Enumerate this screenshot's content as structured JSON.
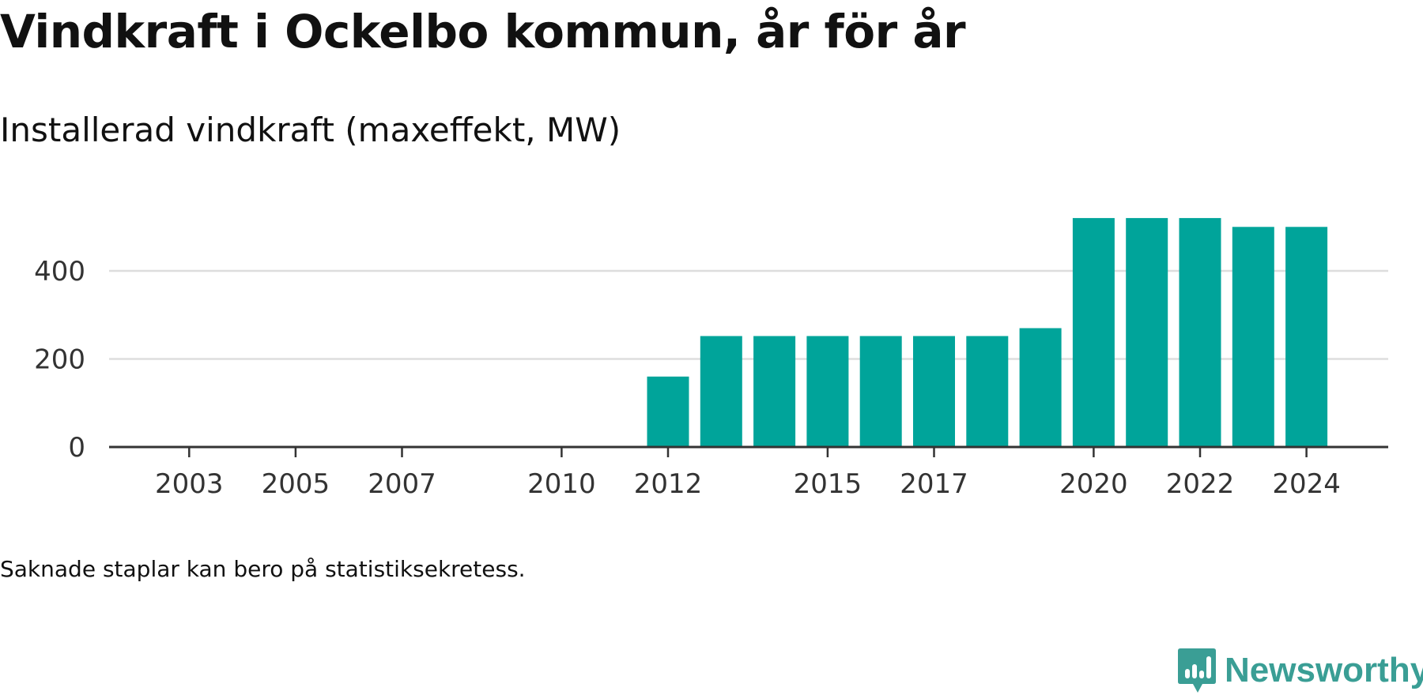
{
  "header": {
    "title": "Vindkraft i Ockelbo kommun, år för år",
    "subtitle": "Installerad vindkraft (maxeffekt, MW)"
  },
  "footer": {
    "note": "Saknade staplar kan bero på statistiksekretess.",
    "brand": "Newsworthy"
  },
  "colors": {
    "bar": "#00a49a",
    "brand": "#3a9e95",
    "grid": "#dddddd",
    "axis": "#333333",
    "tick_text": "#333333"
  },
  "chart_data": {
    "type": "bar",
    "title": "Vindkraft i Ockelbo kommun, år för år",
    "subtitle": "Installerad vindkraft (maxeffekt, MW)",
    "categories": [
      "2002",
      "2003",
      "2004",
      "2005",
      "2006",
      "2007",
      "2008",
      "2009",
      "2010",
      "2011",
      "2012",
      "2013",
      "2014",
      "2015",
      "2016",
      "2017",
      "2018",
      "2019",
      "2020",
      "2021",
      "2022",
      "2023",
      "2024"
    ],
    "values": [
      0,
      0,
      0,
      0,
      0,
      0,
      0,
      0,
      0,
      0,
      160,
      252,
      252,
      252,
      252,
      252,
      252,
      270,
      520,
      520,
      520,
      500,
      500
    ],
    "x_tick_labels": [
      "2003",
      "2005",
      "2007",
      "2010",
      "2012",
      "2015",
      "2017",
      "2020",
      "2022",
      "2024"
    ],
    "y_ticks": [
      0,
      200,
      400
    ],
    "ylim": [
      0,
      540
    ],
    "xlabel": "",
    "ylabel": "",
    "grid": true,
    "legend": "none"
  }
}
